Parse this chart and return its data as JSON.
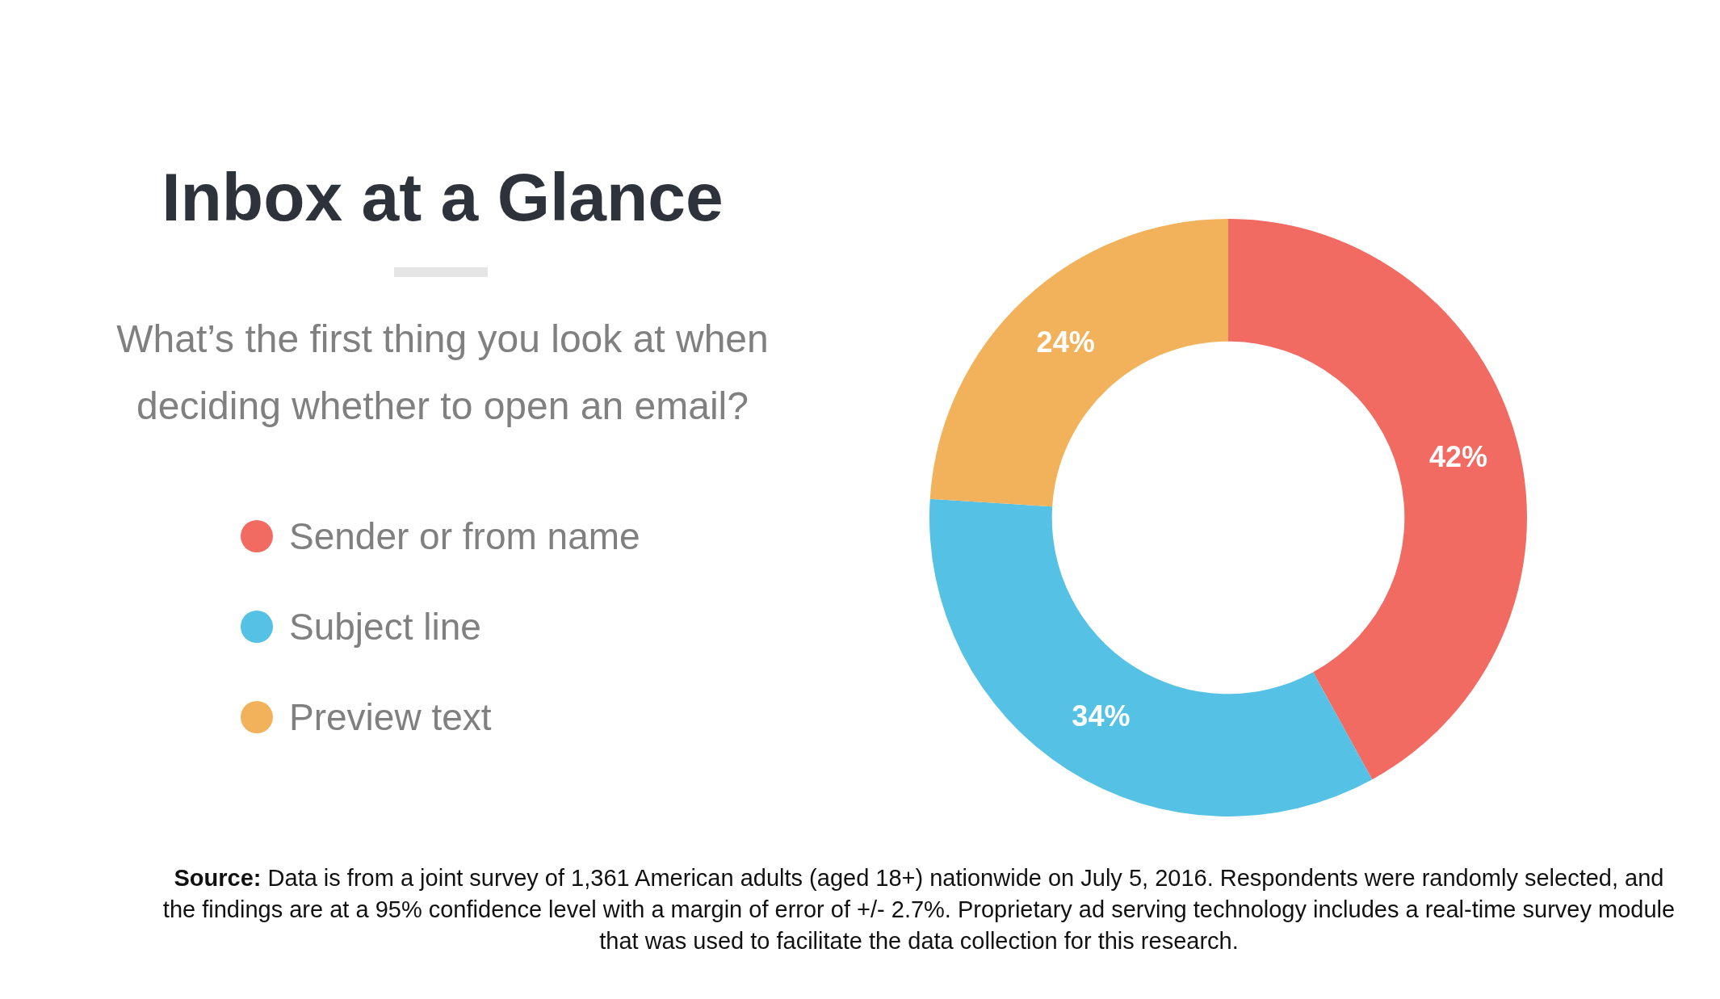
{
  "chart_data": {
    "type": "donut",
    "title": "Inbox at a Glance",
    "subtitle": "What’s the first thing you look at when deciding whether to open an email?",
    "categories": [
      "Sender or from name",
      "Subject line",
      "Preview text"
    ],
    "values": [
      42,
      34,
      24
    ],
    "colors": [
      "#f26b63",
      "#55c1e4",
      "#f2b25c"
    ],
    "value_labels": [
      "42%",
      "34%",
      "24%"
    ],
    "legend": "left",
    "annotations": [
      "Source: Data is from a joint survey of 1,361 American adults (aged 18+) nationwide on July 5, 2016. Respondents were randomly selected, and the findings are at a 95% confidence level with a margin of error of +/- 2.7%. Proprietary ad serving technology includes a real-time survey module that was used to facilitate the data collection for this research."
    ]
  }
}
